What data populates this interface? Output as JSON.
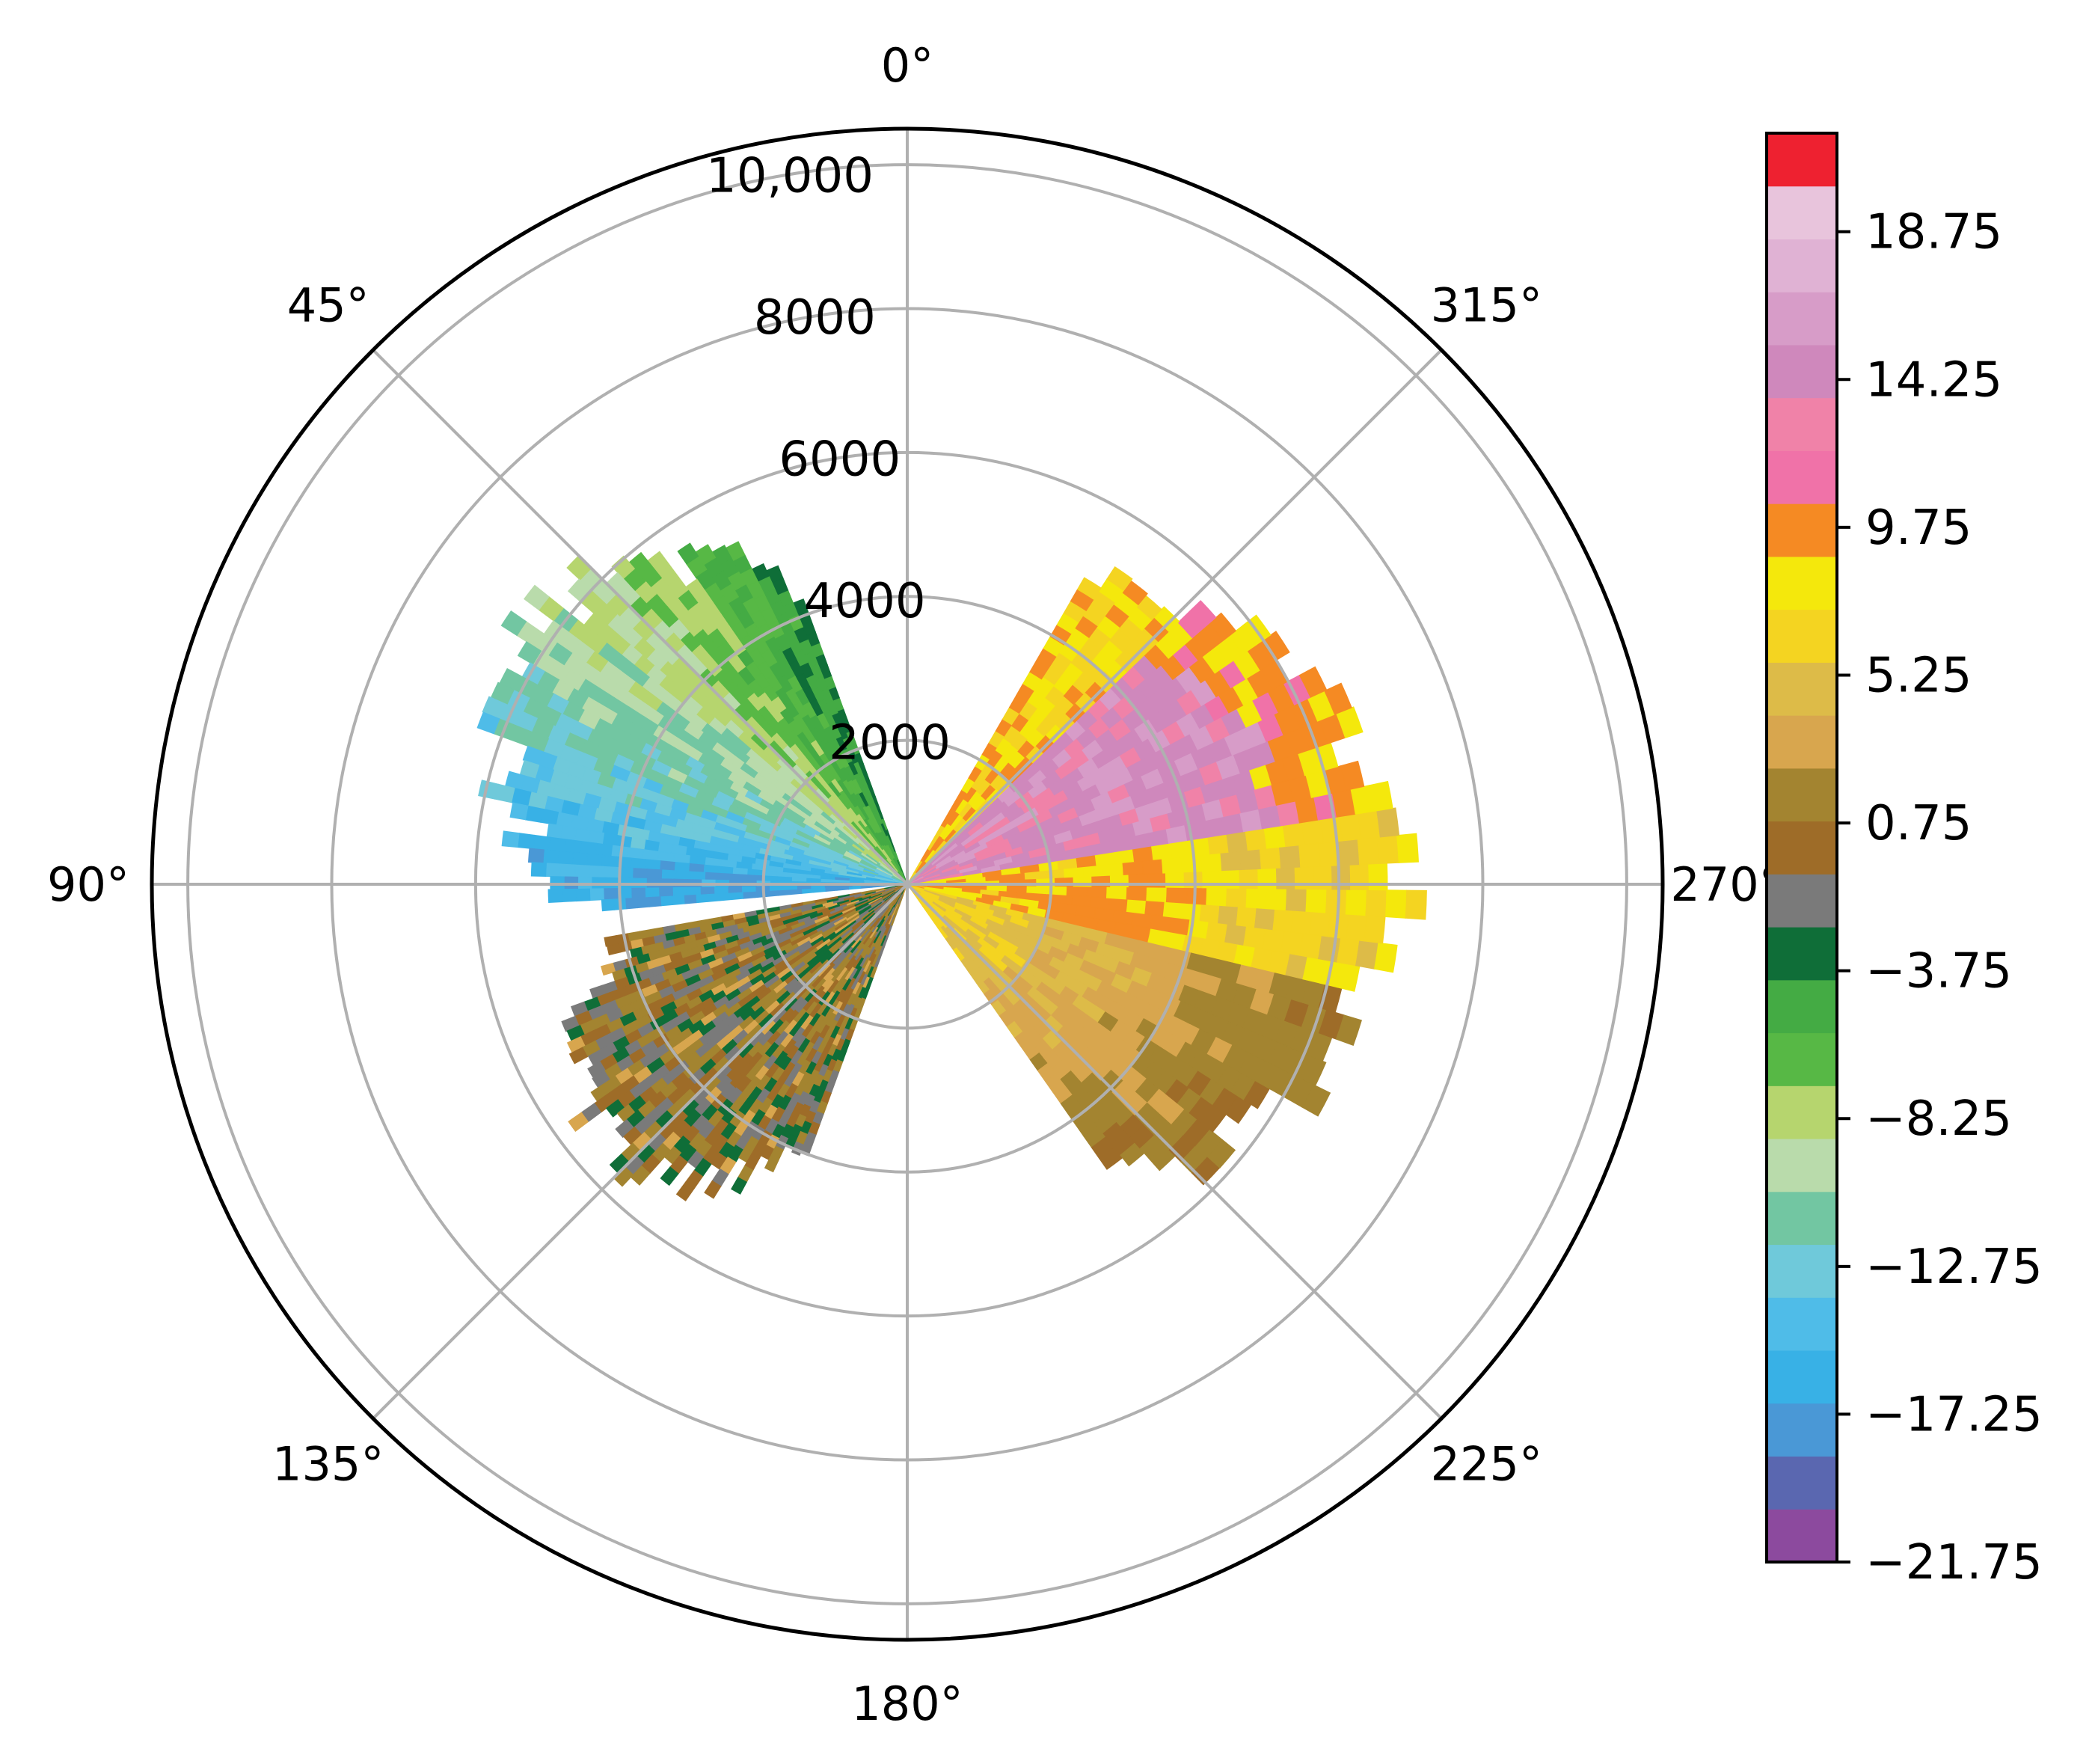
{
  "chart_data": {
    "type": "heatmap",
    "subtype": "polar",
    "theta_zero_location": "N",
    "theta_direction": "counterclockwise",
    "angle_ticks": [
      "0°",
      "45°",
      "90°",
      "135°",
      "180°",
      "225°",
      "270°",
      "315°"
    ],
    "angle_tick_values_deg": [
      0,
      45,
      90,
      135,
      180,
      225,
      270,
      315
    ],
    "radial_ticks": [
      2000,
      4000,
      6000,
      8000,
      10000
    ],
    "radial_tick_labels": [
      "2000",
      "4000",
      "6000",
      "8000",
      "10,000"
    ],
    "rlim": [
      0,
      10500
    ],
    "grid": true,
    "colorbar": {
      "location": "right",
      "range": [
        -21.75,
        21.75
      ],
      "levels": [
        -21.75,
        -19.5,
        -17.25,
        -15.0,
        -12.75,
        -10.5,
        -8.25,
        -6.0,
        -3.75,
        -1.5,
        0.75,
        3.0,
        5.25,
        7.5,
        9.75,
        12.0,
        14.25,
        16.5,
        18.75,
        21.0,
        21.75
      ],
      "tick_labels": [
        "18.75",
        "14.25",
        "9.75",
        "5.25",
        "0.75",
        "−3.75",
        "−8.25",
        "−12.75",
        "−17.25",
        "−21.75"
      ],
      "tick_values": [
        18.75,
        14.25,
        9.75,
        5.25,
        0.75,
        -3.75,
        -8.25,
        -12.75,
        -17.25,
        -21.75
      ],
      "colors": [
        "#8c4a9e",
        "#5a67b0",
        "#4a98d6",
        "#38b1e6",
        "#4fbce8",
        "#6fc9da",
        "#72c6a2",
        "#b9dbab",
        "#b6d56e",
        "#57b845",
        "#44ab44",
        "#0f6e38",
        "#7a7a7a",
        "#9e6c28",
        "#a38430",
        "#d8a64e",
        "#ddbb48",
        "#f4d421",
        "#f4e80c",
        "#f58a23",
        "#f072a8",
        "#f082a8",
        "#cf88bc",
        "#d79cc8",
        "#e0b2d4",
        "#e8c4dc",
        "#ee2130"
      ]
    },
    "regions": [
      {
        "theta_start_deg": 20,
        "theta_end_deg": 95,
        "value_range": [
          -17.25,
          -3.75
        ],
        "r_max": 6400
      },
      {
        "theta_start_deg": 100,
        "theta_end_deg": 160,
        "value_range": [
          -3.75,
          3.0
        ],
        "r_max": 5600
      },
      {
        "theta_start_deg": 215,
        "theta_end_deg": 330,
        "value_range": [
          0.75,
          16.5
        ],
        "r_max": 7000
      }
    ]
  }
}
